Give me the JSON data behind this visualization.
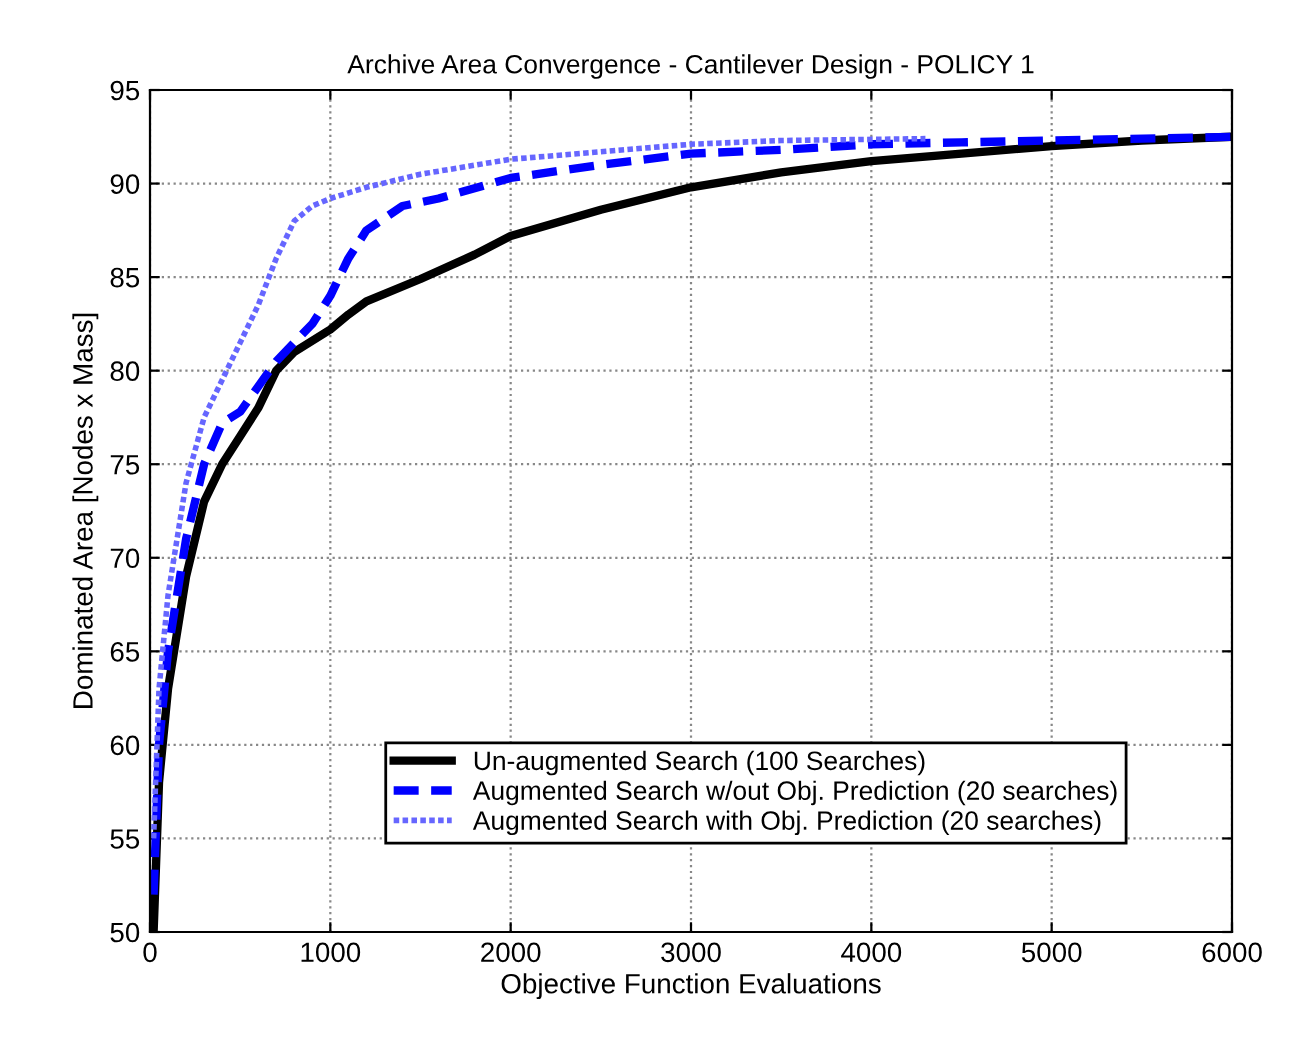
{
  "chart_data": {
    "type": "line",
    "title": "Archive Area Convergence - Cantilever Design - POLICY 1",
    "xlabel": "Objective Function Evaluations",
    "ylabel": "Dominated Area [Nodes x Mass]",
    "xlim": [
      0,
      6000
    ],
    "ylim": [
      50,
      95
    ],
    "xticks": [
      0,
      1000,
      2000,
      3000,
      4000,
      5000,
      6000
    ],
    "yticks": [
      50,
      55,
      60,
      65,
      70,
      75,
      80,
      85,
      90,
      95
    ],
    "grid": true,
    "legend": "bottom",
    "marker": "none",
    "series": [
      {
        "name": "Un-augmented Search (100 Searches)",
        "color": "#000000",
        "line_style": "solid",
        "x": [
          20,
          50,
          100,
          200,
          300,
          400,
          500,
          600,
          700,
          800,
          1000,
          1100,
          1200,
          1500,
          1800,
          2000,
          2500,
          3000,
          3500,
          4000,
          4500,
          5000,
          5500,
          6000
        ],
        "values": [
          50,
          58,
          63,
          69,
          73,
          75,
          76.5,
          78,
          80,
          81,
          82.2,
          83,
          83.7,
          84.9,
          86.2,
          87.2,
          88.6,
          89.8,
          90.6,
          91.2,
          91.6,
          92,
          92.3,
          92.5
        ]
      },
      {
        "name": "Augmented Search w/out Obj. Prediction (20 searches)",
        "color": "#0000ff",
        "line_style": "dashed",
        "x": [
          20,
          50,
          100,
          200,
          300,
          400,
          500,
          700,
          900,
          1000,
          1100,
          1200,
          1400,
          1600,
          2000,
          2500,
          3000,
          3500,
          4000,
          4500,
          5000,
          6000
        ],
        "values": [
          52,
          60,
          65,
          71,
          75,
          77.2,
          77.8,
          80.5,
          82.5,
          84,
          86,
          87.5,
          88.8,
          89.2,
          90.3,
          91,
          91.6,
          91.8,
          92.1,
          92.2,
          92.3,
          92.5
        ]
      },
      {
        "name": "Augmented Search with Obj. Prediction (20 searches)",
        "color": "#6666ff",
        "line_style": "dotted",
        "x": [
          20,
          50,
          100,
          200,
          300,
          400,
          500,
          600,
          700,
          800,
          900,
          1000,
          1200,
          1500,
          2000,
          2500,
          3000,
          3500,
          4300
        ],
        "values": [
          55,
          63,
          68,
          74,
          77.5,
          79.5,
          81.5,
          83.5,
          86,
          88,
          88.8,
          89.2,
          89.8,
          90.5,
          91.3,
          91.7,
          92.1,
          92.3,
          92.4
        ]
      }
    ]
  }
}
